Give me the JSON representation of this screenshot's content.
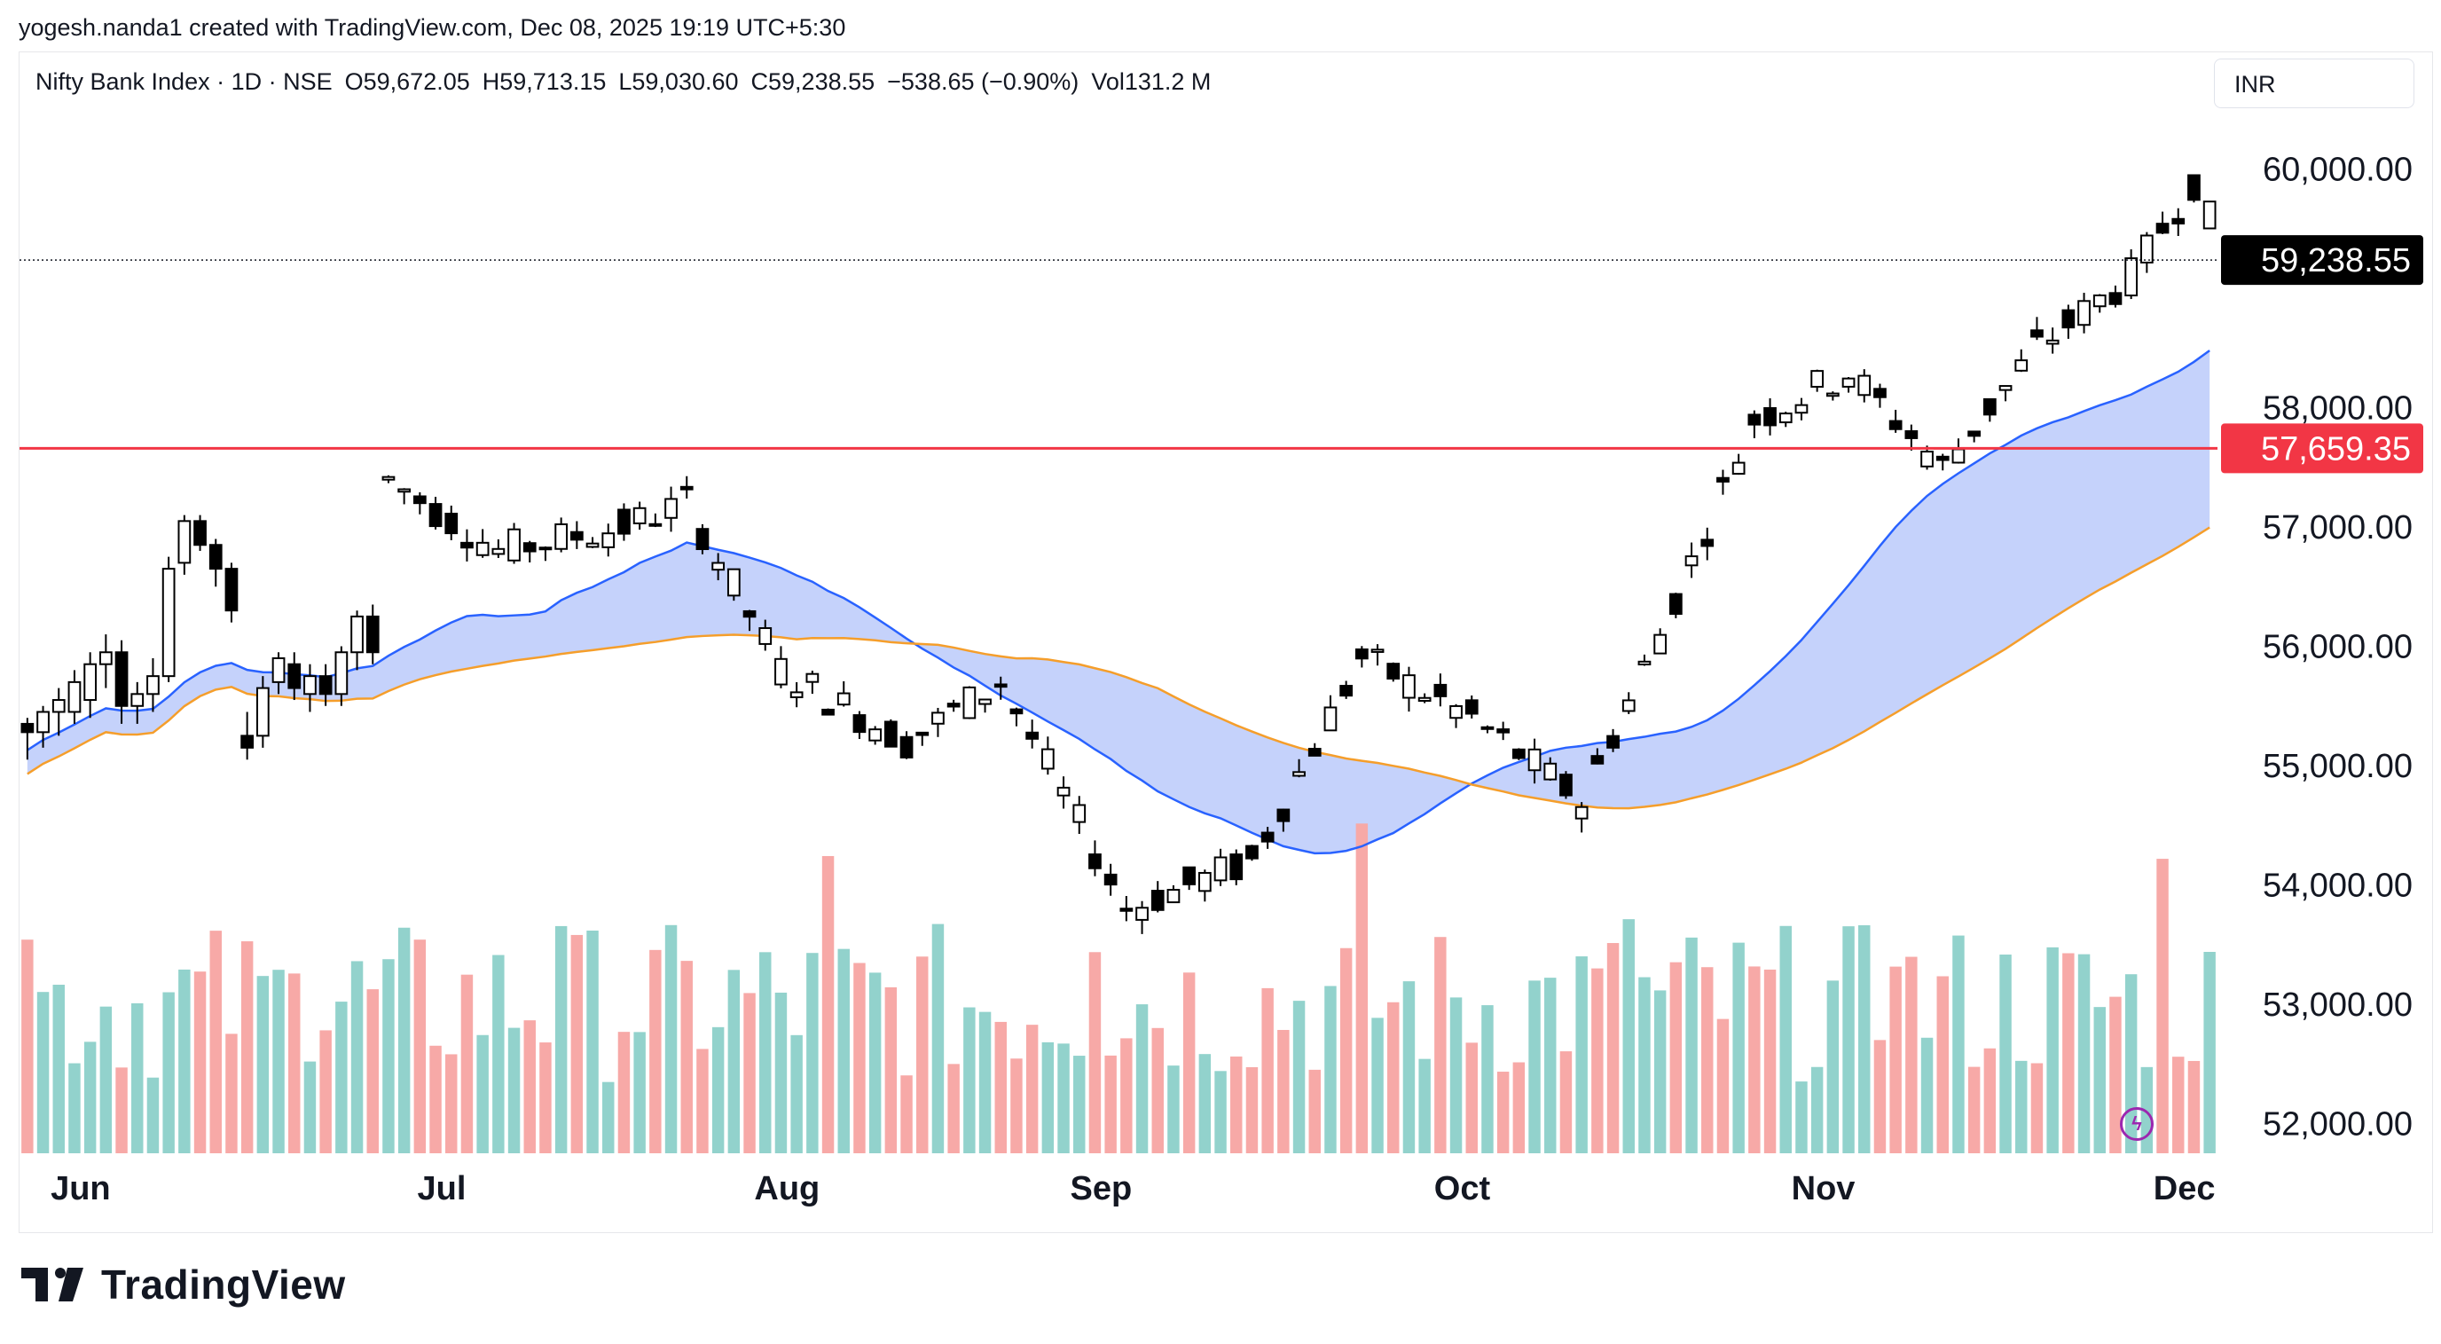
{
  "attribution": "yogesh.nanda1 created with TradingView.com, Dec 08, 2025 19:19 UTC+5:30",
  "legend": {
    "symbol": "Nifty Bank Index · 1D · NSE",
    "open": "O59,672.05",
    "high": "H59,713.15",
    "low": "L59,030.60",
    "close": "C59,238.55",
    "change": "−538.65 (−0.90%)",
    "volume": "Vol131.2 M"
  },
  "currency": "INR",
  "brand": "TradingView",
  "colors": {
    "up_volume": "#92d2cc",
    "down_volume": "#f7a9a7",
    "fast_ma": "#2962ff",
    "slow_ma": "#f59e2b",
    "fill": "#bfcdfb",
    "support_line": "#f23645",
    "candle_up": "#ffffff",
    "candle_down": "#000000"
  },
  "chart_data": {
    "type": "candlestick",
    "x_labels": [
      "Jun",
      "Jul",
      "Aug",
      "Sep",
      "Oct",
      "Nov",
      "Dec"
    ],
    "y_ticks": [
      "60,000.00",
      "58,000.00",
      "57,000.00",
      "56,000.00",
      "55,000.00",
      "54,000.00",
      "53,000.00",
      "52,000.00"
    ],
    "y_tick_values": [
      60000,
      58000,
      57000,
      56000,
      55000,
      54000,
      53000,
      52000
    ],
    "ylim": [
      51750,
      60600
    ],
    "last_price_label": "59,238.55",
    "last_price": 59238.55,
    "support_label": "57,659.35",
    "support_price": 57659.35,
    "month_start_index": [
      0,
      23,
      45,
      65,
      88,
      111,
      134
    ],
    "ohlc": [
      [
        55350,
        55400,
        55050,
        55280
      ],
      [
        55280,
        55500,
        55150,
        55450
      ],
      [
        55450,
        55650,
        55250,
        55550
      ],
      [
        55450,
        55800,
        55350,
        55700
      ],
      [
        55550,
        55950,
        55400,
        55850
      ],
      [
        55850,
        56100,
        55650,
        55950
      ],
      [
        55950,
        56050,
        55350,
        55500
      ],
      [
        55500,
        55700,
        55350,
        55600
      ],
      [
        55600,
        55900,
        55450,
        55750
      ],
      [
        55750,
        56750,
        55700,
        56650
      ],
      [
        56700,
        57100,
        56600,
        57050
      ],
      [
        57050,
        57100,
        56800,
        56850
      ],
      [
        56850,
        56900,
        56500,
        56650
      ],
      [
        56650,
        56700,
        56200,
        56300
      ],
      [
        55250,
        55450,
        55050,
        55150
      ],
      [
        55250,
        55750,
        55150,
        55650
      ],
      [
        55700,
        55950,
        55600,
        55900
      ],
      [
        55850,
        55950,
        55550,
        55650
      ],
      [
        55600,
        55850,
        55450,
        55750
      ],
      [
        55750,
        55850,
        55500,
        55600
      ],
      [
        55600,
        56000,
        55500,
        55950
      ],
      [
        55950,
        56300,
        55800,
        56250
      ],
      [
        56250,
        56350,
        55850,
        55950
      ]
    ],
    "ohlc_note": "",
    "volume_bars": 134
  }
}
